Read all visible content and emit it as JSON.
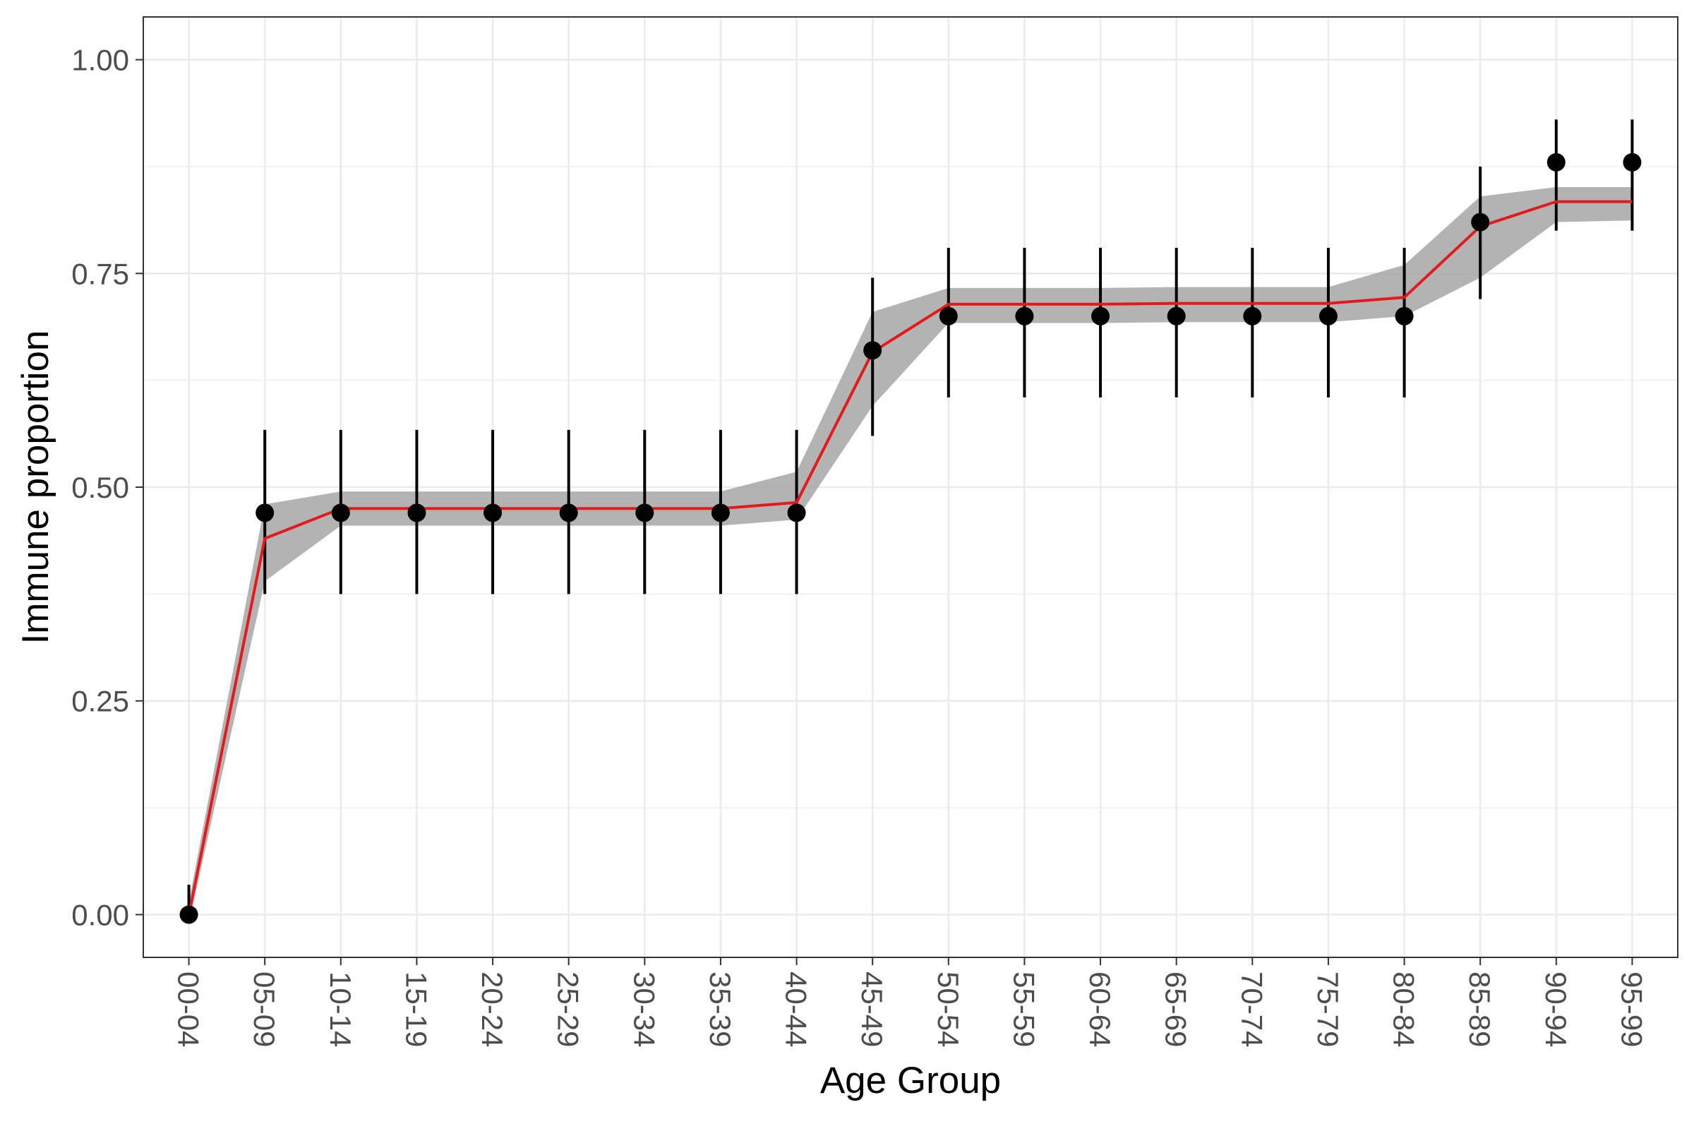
{
  "chart_data": {
    "type": "line",
    "xlabel": "Age Group",
    "ylabel": "Immune proportion",
    "categories": [
      "00-04",
      "05-09",
      "10-14",
      "15-19",
      "20-24",
      "25-29",
      "30-34",
      "35-39",
      "40-44",
      "45-49",
      "50-54",
      "55-59",
      "60-64",
      "65-69",
      "70-74",
      "75-79",
      "80-84",
      "85-89",
      "90-94",
      "95-99"
    ],
    "ylim": [
      -0.05,
      1.05
    ],
    "yticks": [
      "0.00",
      "0.25",
      "0.50",
      "0.75",
      "1.00"
    ],
    "grid": true,
    "series": [
      {
        "kind": "points-with-errorbars",
        "color": "#000000",
        "values": [
          0.0,
          0.47,
          0.47,
          0.47,
          0.47,
          0.47,
          0.47,
          0.47,
          0.47,
          0.66,
          0.7,
          0.7,
          0.7,
          0.7,
          0.7,
          0.7,
          0.7,
          0.81,
          0.88,
          0.88
        ],
        "lower": [
          0.0,
          0.375,
          0.375,
          0.375,
          0.375,
          0.375,
          0.375,
          0.375,
          0.375,
          0.56,
          0.605,
          0.605,
          0.605,
          0.605,
          0.605,
          0.605,
          0.605,
          0.72,
          0.8,
          0.8
        ],
        "upper": [
          0.035,
          0.567,
          0.567,
          0.567,
          0.567,
          0.567,
          0.567,
          0.567,
          0.567,
          0.745,
          0.78,
          0.78,
          0.78,
          0.78,
          0.78,
          0.78,
          0.78,
          0.875,
          0.93,
          0.93
        ]
      },
      {
        "kind": "fitted-line-with-band",
        "color": "#e31a1c",
        "band_color": "#a6a6a6",
        "values": [
          0.0,
          0.44,
          0.475,
          0.475,
          0.475,
          0.475,
          0.475,
          0.475,
          0.482,
          0.658,
          0.714,
          0.714,
          0.714,
          0.715,
          0.715,
          0.715,
          0.722,
          0.805,
          0.834,
          0.834
        ],
        "band_lower": [
          -0.01,
          0.39,
          0.455,
          0.455,
          0.455,
          0.455,
          0.455,
          0.455,
          0.462,
          0.595,
          0.692,
          0.692,
          0.692,
          0.693,
          0.693,
          0.693,
          0.7,
          0.745,
          0.81,
          0.812
        ],
        "band_upper": [
          0.015,
          0.48,
          0.495,
          0.495,
          0.495,
          0.495,
          0.495,
          0.495,
          0.518,
          0.705,
          0.733,
          0.733,
          0.733,
          0.734,
          0.734,
          0.734,
          0.76,
          0.84,
          0.851,
          0.851
        ]
      }
    ]
  }
}
